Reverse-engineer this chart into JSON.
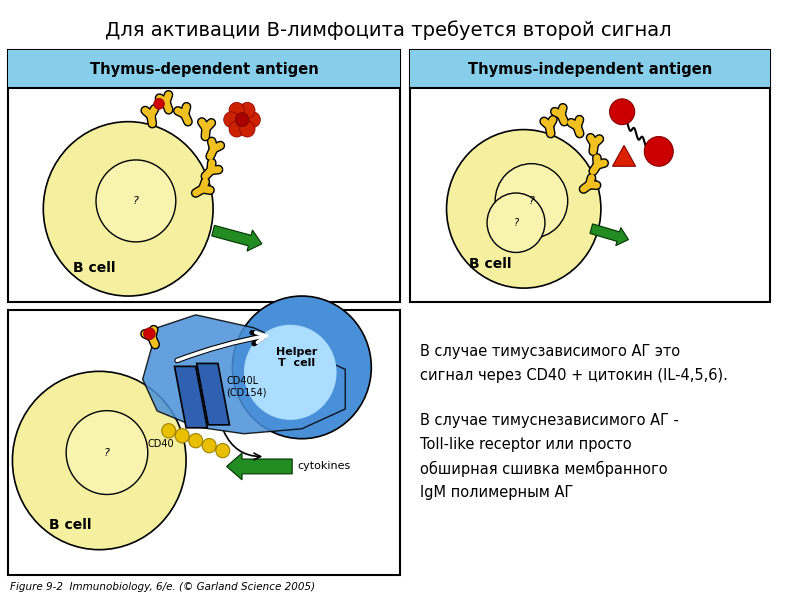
{
  "title": "Для активации В-лимфоцита требуется второй сигнал",
  "title_fontsize": 14,
  "bg_color": "#ffffff",
  "light_blue_header": "#87ceeb",
  "yellow_cell": "#f5f0a0",
  "blue_tcell": "#4a90d9",
  "light_blue_tcell": "#aaddff",
  "green_arrow": "#228B22",
  "red_circle": "#cc0000",
  "yellow_receptor": "#f0c020",
  "gold_beads": "#e8c000",
  "panel1_title": "Thymus-dependent antigen",
  "panel2_title": "Thymus-independent antigen",
  "text1_line1": "В случае тимусзависимого АГ это",
  "text1_line2": "сигнал через CD40 + цитокин (IL-4,5,6).",
  "text2_line1": "В случае тимуснезависимого АГ -",
  "text2_line2": "Toll-like receptor или просто",
  "text2_line3": "обширная сшивка мембранного",
  "text2_line4": "IgM полимерным АГ",
  "caption": "Figure 9-2  Immunobiology, 6/e. (© Garland Science 2005)",
  "helper_label": "Helper\nT  cell",
  "bcell_label": "B cell",
  "cd40l_label": "CD40L\n(CD154)",
  "cd40_label": "CD40",
  "cytokines_label": "cytokines"
}
